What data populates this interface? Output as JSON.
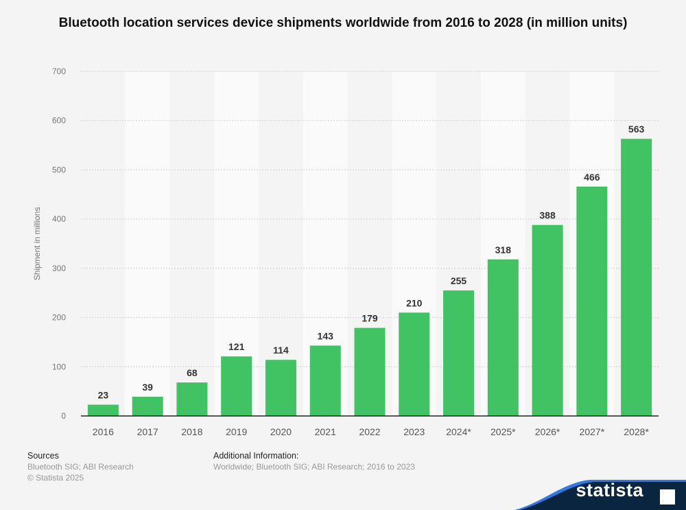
{
  "chart_data": {
    "type": "bar",
    "title": "Bluetooth location services device shipments worldwide from 2016 to 2028 (in million units)",
    "xlabel": "",
    "ylabel": "Shipment in millions",
    "categories": [
      "2016",
      "2017",
      "2018",
      "2019",
      "2020",
      "2021",
      "2022",
      "2023",
      "2024*",
      "2025*",
      "2026*",
      "2027*",
      "2028*"
    ],
    "values": [
      23,
      39,
      68,
      121,
      114,
      143,
      179,
      210,
      255,
      318,
      388,
      466,
      563
    ],
    "ylim": [
      0,
      700
    ],
    "yticks": [
      0,
      100,
      200,
      300,
      400,
      500,
      600,
      700
    ],
    "grid": true,
    "bar_color": "#41c363"
  },
  "footer": {
    "sources_label": "Sources",
    "sources": "Bluetooth SIG; ABI Research",
    "copyright": "© Statista 2025",
    "additional_label": "Additional Information:",
    "additional": "Worldwide; Bluetooth SIG; ABI Research; 2016 to 2023"
  },
  "logo": {
    "text": "statista",
    "bg": "#0a2540",
    "accent": "#2f7ae5"
  }
}
